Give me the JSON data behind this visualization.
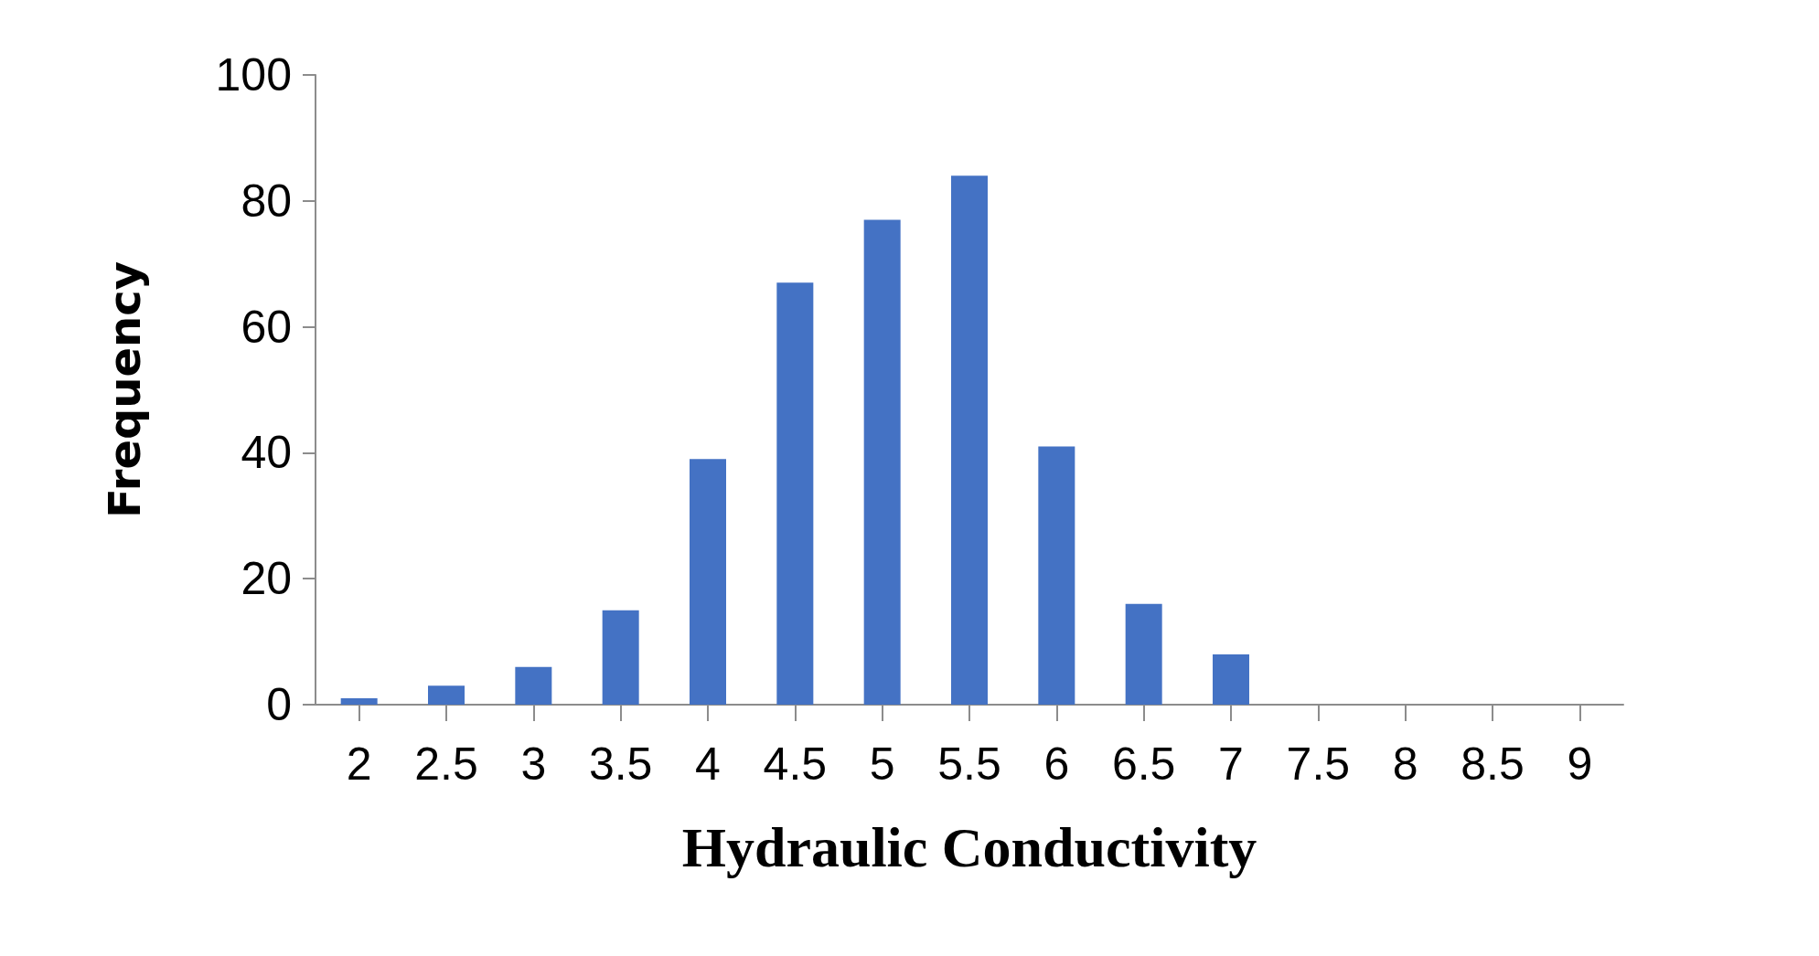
{
  "chart_data": {
    "type": "bar",
    "xlabel": "Hydraulic Conductivity",
    "ylabel": "Frequency",
    "categories": [
      "2",
      "2.5",
      "3",
      "3.5",
      "4",
      "4.5",
      "5",
      "5.5",
      "6",
      "6.5",
      "7",
      "7.5",
      "8",
      "8.5",
      "9"
    ],
    "values": [
      1,
      3,
      6,
      15,
      39,
      67,
      77,
      84,
      41,
      16,
      8,
      0,
      0,
      0,
      0
    ],
    "color": "#4472c4",
    "ylim": [
      0,
      100
    ],
    "yticks": [
      0,
      20,
      40,
      60,
      80,
      100
    ],
    "grid": false
  }
}
